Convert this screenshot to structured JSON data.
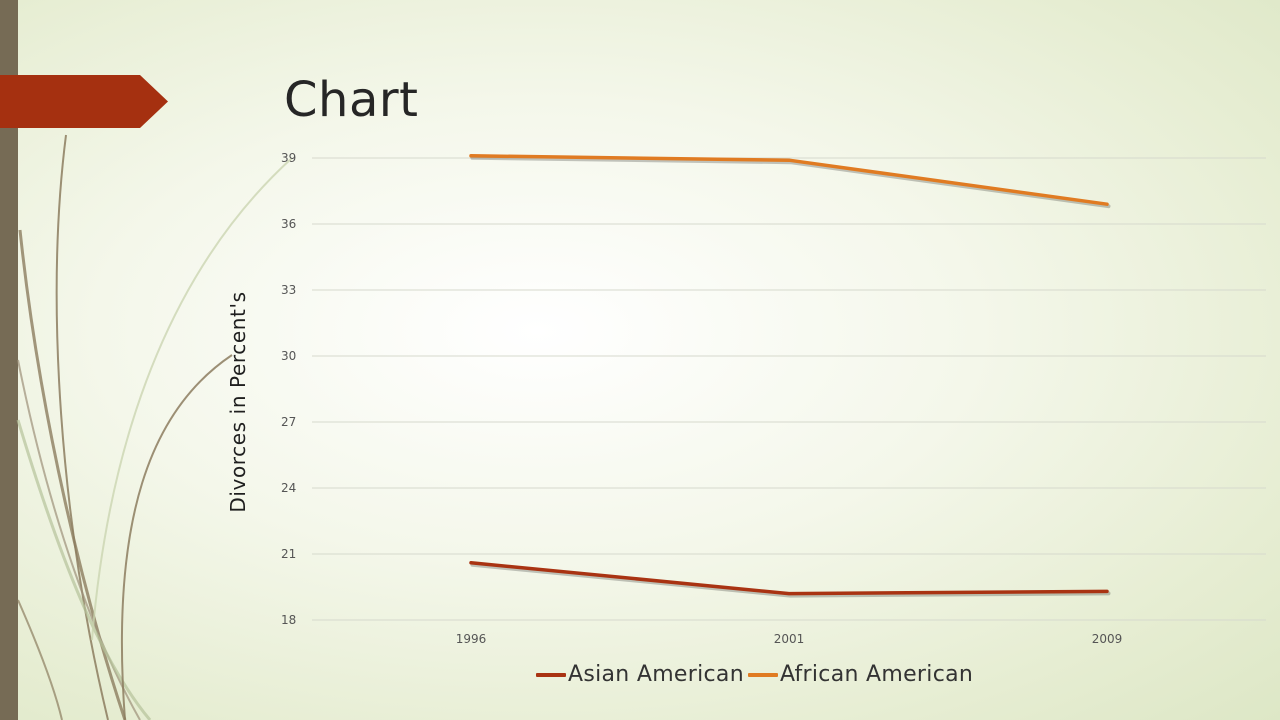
{
  "slide": {
    "title": "Chart",
    "accent_colors": {
      "side_bar": "#766b55",
      "title_tab": "#a53010",
      "decor_lines": "#8c7d5f"
    }
  },
  "chart_data": {
    "type": "line",
    "categories": [
      "1996",
      "2001",
      "2009"
    ],
    "series": [
      {
        "name": "Asian American",
        "values": [
          20.6,
          19.2,
          19.3
        ],
        "color": "#a93312"
      },
      {
        "name": "African American",
        "values": [
          39.1,
          38.9,
          36.9
        ],
        "color": "#e07b22"
      }
    ],
    "title": "",
    "xlabel": "",
    "ylabel": "Divorces in Percent's",
    "ylim": [
      18,
      39
    ],
    "yticks": [
      18,
      21,
      24,
      27,
      30,
      33,
      36,
      39
    ],
    "grid": true,
    "legend": "bottom"
  }
}
